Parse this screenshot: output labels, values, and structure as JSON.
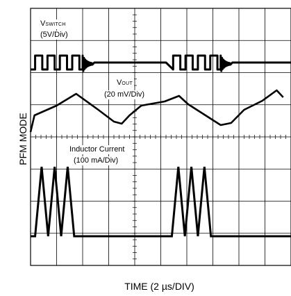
{
  "y_axis_label": "PFM MODE",
  "x_axis_label": "TIME (2 µs/DIV)",
  "traces": {
    "vswitch": {
      "label_main": "V",
      "label_sub": "SWITCH",
      "scale": "(5V/Div)"
    },
    "vout": {
      "label_main": "V",
      "label_sub": "OUT",
      "scale": "(20 mV/Div)"
    },
    "inductor": {
      "label": "Inductor Current",
      "scale": "(100 mA/Div)"
    }
  },
  "chart_data": {
    "type": "line",
    "title": "",
    "xlabel": "TIME (2 µs/DIV)",
    "ylabel": "PFM MODE",
    "grid": true,
    "divisions": {
      "x": 10,
      "y": 8
    },
    "x_units_per_div": "2 µs",
    "series": [
      {
        "name": "VSWITCH",
        "scale": "5V/Div",
        "burst_pulses": 4,
        "burst_period_us": 10.5,
        "burst_start_us": [
          0,
          10.6
        ]
      },
      {
        "name": "VOUT",
        "scale": "20 mV/Div",
        "ripple_period_us": 10.5
      },
      {
        "name": "Inductor Current",
        "scale": "100 mA/Div",
        "peaks_per_burst": 3,
        "burst_period_us": 10.5
      }
    ]
  }
}
